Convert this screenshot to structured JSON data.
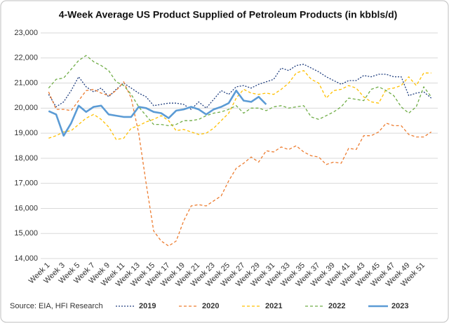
{
  "chart_data": {
    "type": "line",
    "title": "4-Week Average US Product Supplied of Petroleum Products (in kbbls/d)",
    "source": "Source: EIA, HFI Research",
    "categories": [
      "Week 1",
      null,
      "Week 3",
      null,
      "Week 5",
      null,
      "Week 7",
      null,
      "Week 9",
      null,
      "Week 11",
      null,
      "Week 13",
      null,
      "Week 15",
      null,
      "Week 17",
      null,
      "Week 19",
      null,
      "Week 21",
      null,
      "Week 23",
      null,
      "Week 25",
      null,
      "Week 27",
      null,
      "Week 29",
      null,
      "Week 31",
      null,
      "Week 33",
      null,
      "Week 35",
      null,
      "Week 37",
      null,
      "Week 39",
      null,
      "Week 41",
      null,
      "Week 43",
      null,
      "Week 45",
      null,
      "Week 47",
      null,
      "Week 49",
      null,
      "Week 51",
      null
    ],
    "ylim": [
      14000,
      23000
    ],
    "yticks": [
      {
        "value": 14000,
        "label": "14,000"
      },
      {
        "value": 15000,
        "label": "15,000"
      },
      {
        "value": 16000,
        "label": "16,000"
      },
      {
        "value": 17000,
        "label": "17,000"
      },
      {
        "value": 18000,
        "label": "18,000"
      },
      {
        "value": 19000,
        "label": "19,000"
      },
      {
        "value": 20000,
        "label": "20,000"
      },
      {
        "value": 21000,
        "label": "21,000"
      },
      {
        "value": 22000,
        "label": "22,000"
      },
      {
        "value": 23000,
        "label": "23,000"
      }
    ],
    "grid": true,
    "legend": "bottom",
    "series": [
      {
        "name": "2019",
        "color": "#203f7f",
        "style": "dotted",
        "values": [
          20550,
          20050,
          20250,
          20700,
          21250,
          20850,
          20650,
          20800,
          20450,
          20750,
          21000,
          20800,
          20600,
          20450,
          20100,
          20150,
          20200,
          20200,
          20150,
          19950,
          20250,
          20000,
          20350,
          20700,
          20550,
          20850,
          20900,
          20800,
          20950,
          21050,
          21150,
          21600,
          21500,
          21700,
          21750,
          21600,
          21450,
          21250,
          21100,
          20950,
          21100,
          21100,
          21300,
          21250,
          21350,
          21350,
          21250,
          21250,
          20500,
          20600,
          20650,
          20400
        ]
      },
      {
        "name": "2020",
        "color": "#ed7d31",
        "style": "dashed",
        "values": [
          20650,
          19950,
          19950,
          19900,
          20300,
          20700,
          20750,
          20600,
          20500,
          20700,
          21050,
          20400,
          19000,
          17000,
          15100,
          14700,
          14500,
          14700,
          15500,
          16100,
          16150,
          16100,
          16300,
          16500,
          17100,
          17600,
          17800,
          18050,
          17850,
          18300,
          18250,
          18450,
          18350,
          18500,
          18250,
          18100,
          18050,
          17750,
          17850,
          17800,
          18400,
          18350,
          18900,
          18900,
          19050,
          19400,
          19300,
          19300,
          18950,
          18850,
          18850,
          19050
        ]
      },
      {
        "name": "2021",
        "color": "#ffc000",
        "style": "dashed",
        "values": [
          18800,
          18900,
          19050,
          19100,
          19350,
          19600,
          19750,
          19550,
          19250,
          18750,
          18800,
          19200,
          19300,
          19450,
          19550,
          19700,
          19500,
          19100,
          19150,
          19050,
          18950,
          19000,
          19200,
          19500,
          19800,
          20400,
          20750,
          20600,
          20550,
          20600,
          20550,
          20750,
          21000,
          21400,
          21500,
          21150,
          21000,
          20400,
          20700,
          20750,
          20900,
          20800,
          20450,
          20250,
          20200,
          20750,
          20800,
          20900,
          21250,
          20900,
          21400,
          21400
        ]
      },
      {
        "name": "2022",
        "color": "#70ad47",
        "style": "dashed",
        "values": [
          20800,
          21150,
          21200,
          21550,
          21900,
          22100,
          21850,
          21700,
          21500,
          21050,
          20900,
          20550,
          20050,
          19700,
          19350,
          19350,
          19300,
          19350,
          19500,
          19500,
          19550,
          19700,
          19800,
          19850,
          19950,
          20100,
          19800,
          20000,
          20000,
          19900,
          20050,
          20100,
          20000,
          20050,
          20100,
          19650,
          19550,
          19700,
          19850,
          20050,
          20400,
          20350,
          20300,
          20750,
          20850,
          20700,
          20500,
          20050,
          19800,
          20050,
          20850,
          20450
        ]
      },
      {
        "name": "2023",
        "color": "#5b9bd5",
        "style": "solid",
        "values": [
          19880,
          19750,
          18900,
          19400,
          20100,
          19850,
          20050,
          20100,
          19750,
          19700,
          19650,
          19650,
          20050,
          20000,
          19850,
          19800,
          19600,
          19900,
          19950,
          20050,
          19950,
          19750,
          19950,
          20050,
          20200,
          20700,
          20300,
          20250,
          20450,
          20150,
          null,
          null,
          null,
          null,
          null,
          null,
          null,
          null,
          null,
          null,
          null,
          null,
          null,
          null,
          null,
          null,
          null,
          null,
          null,
          null,
          null,
          null
        ]
      }
    ]
  }
}
